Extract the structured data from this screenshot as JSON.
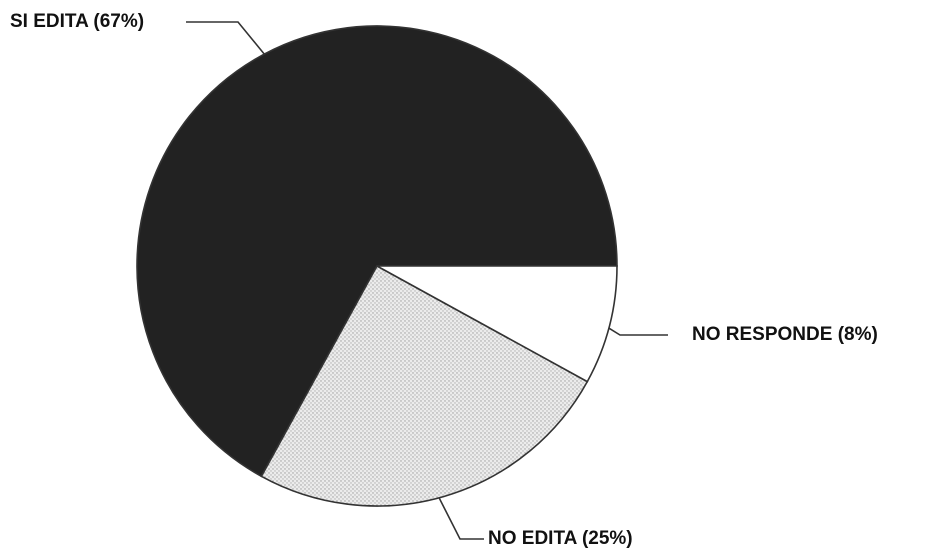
{
  "chart_data": {
    "type": "pie",
    "title": "",
    "slices": [
      {
        "label": "SI EDITA",
        "percent_label": "(67%)",
        "value": 67,
        "fill": "#222222"
      },
      {
        "label": "NO EDITA",
        "percent_label": "(25%)",
        "value": 25,
        "fill": "#e4e4e4"
      },
      {
        "label": "NO RESPONDE",
        "percent_label": "(8%)",
        "value": 8,
        "fill": "#ffffff"
      }
    ],
    "legend": "none",
    "colors": {
      "outline": "#333333",
      "label_text": "#111111"
    }
  }
}
